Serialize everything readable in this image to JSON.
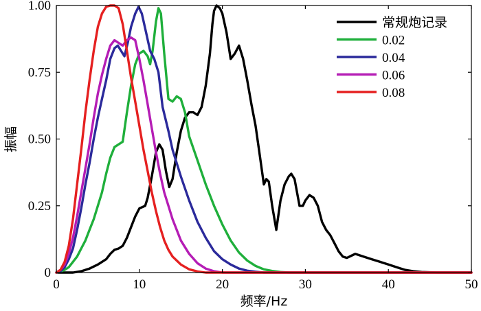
{
  "chart_data": {
    "type": "line",
    "title": "",
    "xlabel": "频率/Hz",
    "ylabel": "振幅",
    "xlim": [
      0,
      50
    ],
    "ylim": [
      0,
      1
    ],
    "xticks": [
      0,
      10,
      20,
      30,
      40,
      50
    ],
    "xtick_labels": [
      "0",
      "10",
      "20",
      "30",
      "40",
      "50"
    ],
    "yticks": [
      0,
      0.25,
      0.5,
      0.75,
      1.0
    ],
    "ytick_labels": [
      "0",
      "0.25",
      "0.50",
      "0.75",
      "1.00"
    ],
    "grid": false,
    "legend_position": "top-right",
    "series": [
      {
        "name": "常规炮记录",
        "color": "#000000",
        "points": [
          [
            0,
            0
          ],
          [
            2,
            0
          ],
          [
            3,
            0.005
          ],
          [
            4,
            0.015
          ],
          [
            5,
            0.03
          ],
          [
            6,
            0.05
          ],
          [
            6.5,
            0.07
          ],
          [
            7,
            0.085
          ],
          [
            7.5,
            0.09
          ],
          [
            8,
            0.1
          ],
          [
            8.5,
            0.13
          ],
          [
            9,
            0.17
          ],
          [
            9.5,
            0.21
          ],
          [
            10,
            0.24
          ],
          [
            10.7,
            0.25
          ],
          [
            11,
            0.28
          ],
          [
            11.5,
            0.36
          ],
          [
            12,
            0.45
          ],
          [
            12.4,
            0.48
          ],
          [
            12.8,
            0.46
          ],
          [
            13.2,
            0.38
          ],
          [
            13.6,
            0.32
          ],
          [
            14,
            0.35
          ],
          [
            14.5,
            0.45
          ],
          [
            15,
            0.53
          ],
          [
            15.5,
            0.58
          ],
          [
            16,
            0.6
          ],
          [
            16.5,
            0.6
          ],
          [
            17,
            0.59
          ],
          [
            17.5,
            0.62
          ],
          [
            18,
            0.7
          ],
          [
            18.5,
            0.82
          ],
          [
            18.8,
            0.93
          ],
          [
            19,
            0.98
          ],
          [
            19.3,
            1.0
          ],
          [
            19.7,
            0.99
          ],
          [
            20,
            0.97
          ],
          [
            20.5,
            0.9
          ],
          [
            21,
            0.8
          ],
          [
            21.5,
            0.82
          ],
          [
            22,
            0.85
          ],
          [
            22.5,
            0.8
          ],
          [
            23,
            0.72
          ],
          [
            23.5,
            0.63
          ],
          [
            24,
            0.55
          ],
          [
            24.5,
            0.44
          ],
          [
            25,
            0.33
          ],
          [
            25.3,
            0.35
          ],
          [
            25.6,
            0.34
          ],
          [
            26,
            0.25
          ],
          [
            26.5,
            0.16
          ],
          [
            27,
            0.27
          ],
          [
            27.5,
            0.33
          ],
          [
            28,
            0.36
          ],
          [
            28.3,
            0.37
          ],
          [
            28.7,
            0.35
          ],
          [
            29,
            0.3
          ],
          [
            29.3,
            0.25
          ],
          [
            29.7,
            0.25
          ],
          [
            30,
            0.27
          ],
          [
            30.5,
            0.29
          ],
          [
            31,
            0.28
          ],
          [
            31.5,
            0.25
          ],
          [
            32,
            0.19
          ],
          [
            32.5,
            0.16
          ],
          [
            33,
            0.14
          ],
          [
            33.5,
            0.11
          ],
          [
            34,
            0.08
          ],
          [
            34.5,
            0.06
          ],
          [
            35,
            0.055
          ],
          [
            36,
            0.07
          ],
          [
            37,
            0.06
          ],
          [
            38,
            0.05
          ],
          [
            39,
            0.04
          ],
          [
            40,
            0.03
          ],
          [
            41,
            0.02
          ],
          [
            42,
            0.01
          ],
          [
            43,
            0.005
          ],
          [
            44,
            0.002
          ],
          [
            46,
            0
          ],
          [
            50,
            0
          ]
        ]
      },
      {
        "name": "0.02",
        "color": "#1faf3b",
        "points": [
          [
            0,
            0
          ],
          [
            0.5,
            0.003
          ],
          [
            1,
            0.01
          ],
          [
            1.5,
            0.02
          ],
          [
            2,
            0.04
          ],
          [
            2.5,
            0.06
          ],
          [
            3,
            0.09
          ],
          [
            3.5,
            0.12
          ],
          [
            4,
            0.16
          ],
          [
            4.5,
            0.2
          ],
          [
            5,
            0.25
          ],
          [
            5.5,
            0.3
          ],
          [
            6,
            0.37
          ],
          [
            6.5,
            0.43
          ],
          [
            7,
            0.47
          ],
          [
            7.5,
            0.48
          ],
          [
            8,
            0.49
          ],
          [
            8.5,
            0.6
          ],
          [
            9,
            0.7
          ],
          [
            9.5,
            0.78
          ],
          [
            10,
            0.82
          ],
          [
            10.5,
            0.83
          ],
          [
            11,
            0.81
          ],
          [
            11.3,
            0.78
          ],
          [
            11.6,
            0.83
          ],
          [
            12,
            0.94
          ],
          [
            12.3,
            0.99
          ],
          [
            12.6,
            0.97
          ],
          [
            13,
            0.82
          ],
          [
            13.5,
            0.65
          ],
          [
            14,
            0.64
          ],
          [
            14.5,
            0.66
          ],
          [
            15,
            0.65
          ],
          [
            15.5,
            0.6
          ],
          [
            16,
            0.51
          ],
          [
            17,
            0.42
          ],
          [
            18,
            0.33
          ],
          [
            19,
            0.25
          ],
          [
            20,
            0.18
          ],
          [
            21,
            0.12
          ],
          [
            22,
            0.075
          ],
          [
            23,
            0.045
          ],
          [
            24,
            0.025
          ],
          [
            25,
            0.012
          ],
          [
            26,
            0.006
          ],
          [
            27,
            0.002
          ],
          [
            28,
            0
          ],
          [
            50,
            0
          ]
        ]
      },
      {
        "name": "0.04",
        "color": "#2b2a9b",
        "points": [
          [
            0,
            0
          ],
          [
            0.5,
            0.005
          ],
          [
            1,
            0.02
          ],
          [
            1.5,
            0.05
          ],
          [
            2,
            0.09
          ],
          [
            2.5,
            0.16
          ],
          [
            3,
            0.24
          ],
          [
            3.5,
            0.33
          ],
          [
            4,
            0.41
          ],
          [
            4.5,
            0.5
          ],
          [
            5,
            0.58
          ],
          [
            5.5,
            0.65
          ],
          [
            6,
            0.72
          ],
          [
            6.5,
            0.8
          ],
          [
            7,
            0.84
          ],
          [
            7.4,
            0.85
          ],
          [
            7.8,
            0.83
          ],
          [
            8.2,
            0.81
          ],
          [
            8.6,
            0.86
          ],
          [
            9,
            0.92
          ],
          [
            9.5,
            0.97
          ],
          [
            9.9,
            0.995
          ],
          [
            10.3,
            0.97
          ],
          [
            10.8,
            0.9
          ],
          [
            11.3,
            0.83
          ],
          [
            11.8,
            0.8
          ],
          [
            12.3,
            0.75
          ],
          [
            12.8,
            0.62
          ],
          [
            13.5,
            0.53
          ],
          [
            14,
            0.46
          ],
          [
            15,
            0.36
          ],
          [
            16,
            0.27
          ],
          [
            17,
            0.19
          ],
          [
            18,
            0.13
          ],
          [
            19,
            0.08
          ],
          [
            20,
            0.05
          ],
          [
            21,
            0.03
          ],
          [
            22,
            0.015
          ],
          [
            23,
            0.007
          ],
          [
            24,
            0.003
          ],
          [
            25,
            0
          ],
          [
            50,
            0
          ]
        ]
      },
      {
        "name": "0.06",
        "color": "#b51db5",
        "points": [
          [
            0,
            0
          ],
          [
            0.5,
            0.01
          ],
          [
            1,
            0.03
          ],
          [
            1.5,
            0.07
          ],
          [
            2,
            0.13
          ],
          [
            2.5,
            0.21
          ],
          [
            3,
            0.3
          ],
          [
            3.5,
            0.39
          ],
          [
            4,
            0.48
          ],
          [
            4.5,
            0.58
          ],
          [
            5,
            0.67
          ],
          [
            5.5,
            0.74
          ],
          [
            6,
            0.8
          ],
          [
            6.5,
            0.85
          ],
          [
            7,
            0.87
          ],
          [
            7.5,
            0.86
          ],
          [
            8,
            0.85
          ],
          [
            8.5,
            0.87
          ],
          [
            9,
            0.88
          ],
          [
            9.5,
            0.87
          ],
          [
            10,
            0.8
          ],
          [
            10.5,
            0.72
          ],
          [
            11,
            0.63
          ],
          [
            11.5,
            0.54
          ],
          [
            12,
            0.45
          ],
          [
            12.5,
            0.37
          ],
          [
            13,
            0.3
          ],
          [
            13.5,
            0.25
          ],
          [
            14,
            0.2
          ],
          [
            15,
            0.12
          ],
          [
            16,
            0.07
          ],
          [
            17,
            0.035
          ],
          [
            18,
            0.015
          ],
          [
            19,
            0.005
          ],
          [
            20,
            0
          ],
          [
            50,
            0
          ]
        ]
      },
      {
        "name": "0.08",
        "color": "#e52020",
        "points": [
          [
            0,
            0
          ],
          [
            0.5,
            0.01
          ],
          [
            1,
            0.04
          ],
          [
            1.5,
            0.1
          ],
          [
            2,
            0.2
          ],
          [
            2.5,
            0.33
          ],
          [
            3,
            0.46
          ],
          [
            3.5,
            0.6
          ],
          [
            4,
            0.72
          ],
          [
            4.5,
            0.83
          ],
          [
            5,
            0.92
          ],
          [
            5.5,
            0.97
          ],
          [
            6,
            0.995
          ],
          [
            6.5,
            1.0
          ],
          [
            7,
            1.0
          ],
          [
            7.5,
            0.99
          ],
          [
            8,
            0.93
          ],
          [
            8.5,
            0.83
          ],
          [
            9,
            0.73
          ],
          [
            9.5,
            0.64
          ],
          [
            10,
            0.55
          ],
          [
            10.5,
            0.46
          ],
          [
            11,
            0.38
          ],
          [
            11.5,
            0.3
          ],
          [
            12,
            0.23
          ],
          [
            12.5,
            0.17
          ],
          [
            13,
            0.12
          ],
          [
            13.5,
            0.085
          ],
          [
            14,
            0.06
          ],
          [
            15,
            0.03
          ],
          [
            16,
            0.012
          ],
          [
            17,
            0.004
          ],
          [
            18,
            0
          ],
          [
            50,
            0
          ]
        ]
      }
    ]
  }
}
